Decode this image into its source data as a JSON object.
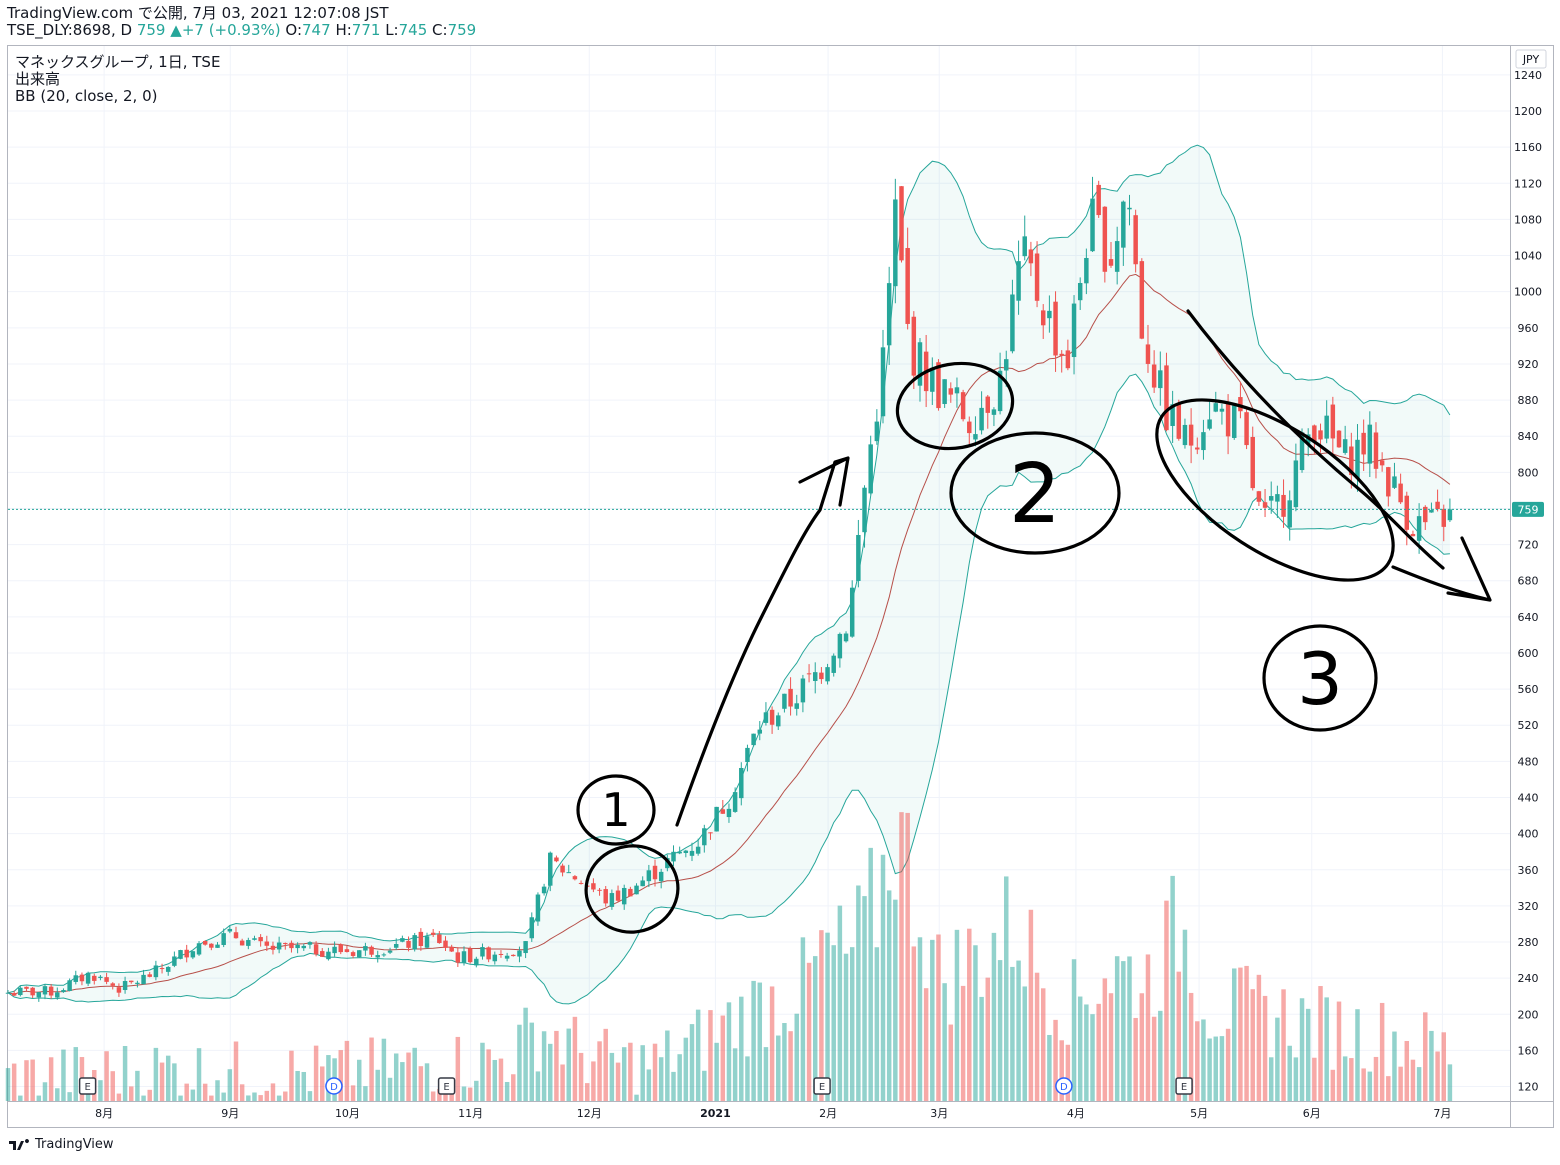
{
  "header": {
    "publish_line": "TradingView.com で公開, 7月 03, 2021 12:07:08 JST",
    "symbol": "TSE_DLY:8698, D",
    "last": "759",
    "change": "+7 (+0.93%)",
    "o_label": "O:",
    "o": "747",
    "h_label": "H:",
    "h": "771",
    "l_label": "L:",
    "l": "745",
    "c_label": "C:",
    "c": "759"
  },
  "legend": {
    "title": "マネックスグループ, 1日, TSE",
    "volume": "出来高",
    "bb": "BB (20, close, 2, 0)"
  },
  "currency": "JPY",
  "price_tag": "759",
  "footer": {
    "brand": "TradingView"
  },
  "annotations": [
    "1",
    "2",
    "3"
  ],
  "chart_data": {
    "type": "candlestick",
    "ylim": [
      104,
      1272
    ],
    "y_ticks": [
      120,
      160,
      200,
      240,
      280,
      320,
      360,
      400,
      440,
      480,
      520,
      560,
      600,
      640,
      680,
      720,
      760,
      800,
      840,
      880,
      920,
      960,
      1000,
      1040,
      1080,
      1120,
      1160,
      1200,
      1240
    ],
    "x_ticks": [
      {
        "label": "8月",
        "t": 0.064
      },
      {
        "label": "9月",
        "t": 0.148
      },
      {
        "label": "10月",
        "t": 0.226
      },
      {
        "label": "11月",
        "t": 0.308
      },
      {
        "label": "12月",
        "t": 0.387
      },
      {
        "label": "2021",
        "t": 0.471,
        "bold": true
      },
      {
        "label": "2月",
        "t": 0.546
      },
      {
        "label": "3月",
        "t": 0.62
      },
      {
        "label": "4月",
        "t": 0.711
      },
      {
        "label": "5月",
        "t": 0.793
      },
      {
        "label": "6月",
        "t": 0.868
      },
      {
        "label": "7月",
        "t": 0.955
      }
    ],
    "events": [
      {
        "type": "E",
        "t": 0.053
      },
      {
        "type": "D",
        "t": 0.217
      },
      {
        "type": "E",
        "t": 0.292
      },
      {
        "type": "E",
        "t": 0.542
      },
      {
        "type": "D",
        "t": 0.703
      },
      {
        "type": "E",
        "t": 0.783
      }
    ],
    "price_keypoints": [
      [
        0.0,
        224
      ],
      [
        0.03,
        225
      ],
      [
        0.055,
        245
      ],
      [
        0.075,
        228
      ],
      [
        0.1,
        248
      ],
      [
        0.125,
        278
      ],
      [
        0.15,
        288
      ],
      [
        0.17,
        273
      ],
      [
        0.2,
        272
      ],
      [
        0.23,
        270
      ],
      [
        0.26,
        276
      ],
      [
        0.285,
        285
      ],
      [
        0.3,
        262
      ],
      [
        0.32,
        268
      ],
      [
        0.345,
        275
      ],
      [
        0.36,
        370
      ],
      [
        0.38,
        350
      ],
      [
        0.4,
        325
      ],
      [
        0.42,
        345
      ],
      [
        0.44,
        370
      ],
      [
        0.46,
        392
      ],
      [
        0.48,
        440
      ],
      [
        0.5,
        520
      ],
      [
        0.52,
        545
      ],
      [
        0.54,
        580
      ],
      [
        0.56,
        640
      ],
      [
        0.57,
        780
      ],
      [
        0.585,
        950
      ],
      [
        0.59,
        1100
      ],
      [
        0.6,
        940
      ],
      [
        0.615,
        900
      ],
      [
        0.64,
        860
      ],
      [
        0.66,
        900
      ],
      [
        0.675,
        1040
      ],
      [
        0.69,
        980
      ],
      [
        0.705,
        920
      ],
      [
        0.72,
        1080
      ],
      [
        0.735,
        1040
      ],
      [
        0.745,
        1120
      ],
      [
        0.755,
        960
      ],
      [
        0.77,
        870
      ],
      [
        0.785,
        830
      ],
      [
        0.8,
        875
      ],
      [
        0.82,
        850
      ],
      [
        0.835,
        740
      ],
      [
        0.85,
        775
      ],
      [
        0.87,
        860
      ],
      [
        0.89,
        815
      ],
      [
        0.905,
        835
      ],
      [
        0.92,
        790
      ],
      [
        0.935,
        745
      ],
      [
        0.95,
        740
      ],
      [
        0.96,
        759
      ]
    ],
    "volume_keypoints": [
      [
        0.0,
        130
      ],
      [
        0.1,
        140
      ],
      [
        0.2,
        135
      ],
      [
        0.28,
        145
      ],
      [
        0.33,
        150
      ],
      [
        0.355,
        185
      ],
      [
        0.39,
        150
      ],
      [
        0.43,
        145
      ],
      [
        0.46,
        170
      ],
      [
        0.5,
        210
      ],
      [
        0.53,
        230
      ],
      [
        0.545,
        270
      ],
      [
        0.56,
        260
      ],
      [
        0.58,
        330
      ],
      [
        0.59,
        410
      ],
      [
        0.6,
        360
      ],
      [
        0.62,
        240
      ],
      [
        0.65,
        270
      ],
      [
        0.67,
        300
      ],
      [
        0.69,
        240
      ],
      [
        0.71,
        210
      ],
      [
        0.73,
        250
      ],
      [
        0.76,
        240
      ],
      [
        0.78,
        300
      ],
      [
        0.8,
        210
      ],
      [
        0.84,
        200
      ],
      [
        0.88,
        185
      ],
      [
        0.92,
        175
      ],
      [
        0.96,
        160
      ]
    ]
  }
}
